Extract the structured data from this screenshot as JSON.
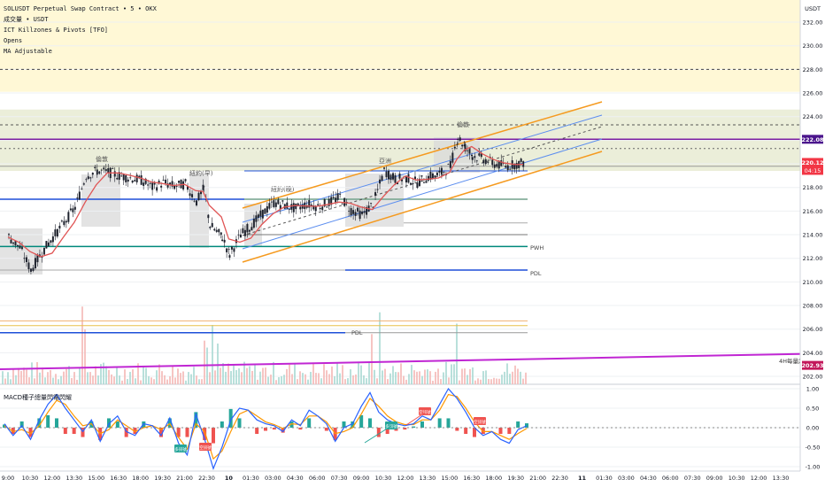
{
  "legend": {
    "symbol_line": "SOLUSDT Perpetual Swap Contract • 5 • OKX",
    "volume_label": "成交量 • USDT",
    "indicator_1": "ICT Killzones & Pivots [TFO]",
    "indicator_2": "Opens",
    "indicator_3": "MA Adjustable"
  },
  "price_scale_unit": "USDT",
  "macd_label": "MACD種子總量閃電閃耀",
  "colors": {
    "killzone_fill": "#fff8d6",
    "orange_channel": "#f59a1f",
    "blue_line": "#1e4fd8",
    "teal_line": "#00897b",
    "ma_line": "#e05555",
    "purple_line": "#7b1fa2",
    "magenta_trend": "#c026d3",
    "bull": "#26a69a",
    "bear": "#ef5350",
    "macd_line": "#2962ff",
    "signal_line": "#ff9800"
  },
  "chart_data": [
    {
      "type": "candlestick",
      "title": "SOLUSDT Perpetual Swap Contract • 5 • OKX",
      "y_unit": "USDT",
      "ylim": [
        200.8,
        233.8
      ],
      "y_ticks": [
        202.0,
        204.0,
        206.0,
        208.0,
        210.0,
        212.0,
        214.0,
        216.0,
        218.0,
        220.0,
        222.0,
        224.0,
        226.0,
        228.0,
        230.0,
        232.0
      ],
      "x_ticks": [
        "9:00",
        "10:30",
        "12:00",
        "13:30",
        "15:00",
        "16:30",
        "18:00",
        "19:30",
        "21:00",
        "22:30",
        "10",
        "01:30",
        "03:00",
        "04:30",
        "06:00",
        "07:30",
        "09:00",
        "10:30",
        "12:00",
        "13:30",
        "15:00",
        "16:30",
        "18:00",
        "19:30",
        "21:00",
        "22:30",
        "11",
        "01:30",
        "03:00",
        "04:30",
        "06:00",
        "07:30",
        "09:00",
        "10:30",
        "12:00",
        "13:30"
      ],
      "price_path": [
        [
          "09:00",
          213.8
        ],
        [
          "09:45",
          212.9
        ],
        [
          "10:30",
          211.0
        ],
        [
          "11:15",
          212.5
        ],
        [
          "12:00",
          213.8
        ],
        [
          "12:45",
          215.0
        ],
        [
          "13:30",
          216.3
        ],
        [
          "14:15",
          219.0
        ],
        [
          "15:00",
          219.4
        ],
        [
          "15:45",
          219.3
        ],
        [
          "16:30",
          219.0
        ],
        [
          "17:15",
          218.8
        ],
        [
          "18:00",
          218.6
        ],
        [
          "18:45",
          218.0
        ],
        [
          "19:30",
          218.4
        ],
        [
          "20:15",
          218.1
        ],
        [
          "21:00",
          218.3
        ],
        [
          "21:45",
          216.8
        ],
        [
          "22:15",
          217.9
        ],
        [
          "22:40",
          214.8
        ],
        [
          "23:30",
          213.8
        ],
        [
          "00:00",
          212.3
        ],
        [
          "00:45",
          214.0
        ],
        [
          "01:30",
          214.8
        ],
        [
          "02:15",
          215.8
        ],
        [
          "03:00",
          216.7
        ],
        [
          "03:45",
          216.5
        ],
        [
          "04:30",
          216.2
        ],
        [
          "05:15",
          216.6
        ],
        [
          "06:00",
          216.4
        ],
        [
          "06:45",
          216.7
        ],
        [
          "07:30",
          217.2
        ],
        [
          "08:15",
          216.1
        ],
        [
          "09:00",
          215.7
        ],
        [
          "09:45",
          216.6
        ],
        [
          "10:30",
          219.4
        ],
        [
          "11:15",
          218.7
        ],
        [
          "12:00",
          218.8
        ],
        [
          "12:45",
          218.4
        ],
        [
          "13:30",
          218.9
        ],
        [
          "14:15",
          219.1
        ],
        [
          "15:00",
          219.8
        ],
        [
          "15:30",
          222.3
        ],
        [
          "16:00",
          221.4
        ],
        [
          "16:30",
          220.7
        ],
        [
          "17:15",
          220.4
        ],
        [
          "18:00",
          220.0
        ],
        [
          "18:45",
          219.8
        ],
        [
          "19:30",
          220.0
        ],
        [
          "20:00",
          220.1
        ]
      ],
      "last_price": "220.12",
      "countdown": "04:15",
      "highlighted_level": "222.08",
      "trendline_label": "4H每量趨勢",
      "trendline_value": "202.93",
      "level_labels": [
        "PWH",
        "PDL",
        "PDL"
      ],
      "session_labels": [
        "倫敦",
        "紐約(早)",
        "紐約(晚)",
        "亞洲",
        "倫敦"
      ]
    },
    {
      "type": "line",
      "title": "MACD種子總量閃電閃耀",
      "ylim": [
        -1.1,
        1.1
      ],
      "y_ticks": [
        -1.0,
        -0.5,
        0.0,
        0.5,
        1.0
      ],
      "series": [
        {
          "values": [
            0.1,
            -0.2,
            0.05,
            -0.3,
            0.2,
            0.6,
            0.85,
            0.5,
            0.2,
            -0.1,
            0.2,
            -0.35,
            0.1,
            0.3,
            -0.1,
            -0.2,
            0.1,
            0.05,
            -0.2,
            0.25,
            -0.4,
            -0.7,
            0.35,
            -0.3,
            -1.05,
            -0.5,
            0.2,
            0.5,
            0.45,
            0.2,
            0.1,
            0.05,
            -0.1,
            0.2,
            0.05,
            0.45,
            0.3,
            0.1,
            -0.35,
            0.0,
            0.1,
            0.55,
            0.9,
            0.4,
            0.2,
            0.1,
            0.05,
            0.1,
            0.3,
            0.2,
            0.6,
            1.0,
            0.75,
            0.4,
            0.0,
            -0.2,
            -0.1,
            -0.3,
            -0.4,
            -0.05,
            0.05
          ]
        },
        {
          "values": [
            0.05,
            -0.1,
            -0.05,
            -0.15,
            0.05,
            0.4,
            0.7,
            0.6,
            0.3,
            0.05,
            0.1,
            -0.15,
            -0.05,
            0.2,
            0.05,
            -0.1,
            0.0,
            0.05,
            -0.05,
            0.1,
            -0.25,
            -0.55,
            0.1,
            -0.1,
            -0.8,
            -0.6,
            -0.1,
            0.35,
            0.45,
            0.3,
            0.15,
            0.08,
            -0.02,
            0.1,
            0.08,
            0.3,
            0.3,
            0.15,
            -0.15,
            -0.1,
            0.0,
            0.35,
            0.75,
            0.55,
            0.3,
            0.15,
            0.08,
            0.08,
            0.2,
            0.2,
            0.45,
            0.85,
            0.8,
            0.5,
            0.15,
            -0.1,
            -0.1,
            -0.2,
            -0.3,
            -0.15,
            -0.02
          ]
        }
      ],
      "signals": [
        {
          "text": "多訊號",
          "kind": "buy"
        },
        {
          "text": "空訊號",
          "kind": "sell"
        },
        {
          "text": "多訊號",
          "kind": "buy"
        },
        {
          "text": "空訊號",
          "kind": "sell"
        },
        {
          "text": "空訊號",
          "kind": "sell"
        }
      ]
    }
  ]
}
